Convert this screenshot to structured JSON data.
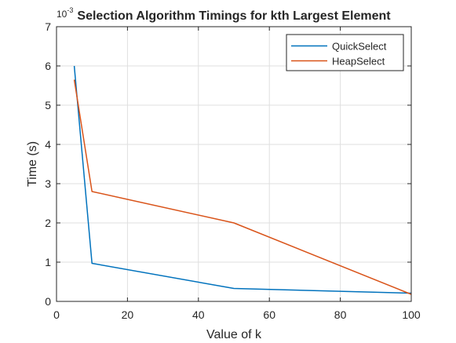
{
  "colors": {
    "series_1": "#0072BD",
    "series_2": "#D95319",
    "axis": "#262626",
    "grid": "#DFDFDF",
    "background": "#FFFFFF"
  },
  "chart_data": {
    "type": "line",
    "title": "Selection Algorithm Timings for kth Largest Element",
    "xlabel": "Value of k",
    "ylabel": "Time (s)",
    "y_exponent_label": "10^-3",
    "y_multiplier": 0.001,
    "xlim": [
      0,
      100
    ],
    "ylim": [
      0,
      7
    ],
    "xticks": [
      0,
      20,
      40,
      60,
      80,
      100
    ],
    "yticks": [
      0,
      1,
      2,
      3,
      4,
      5,
      6,
      7
    ],
    "grid": true,
    "legend_position": "top-right",
    "series": [
      {
        "name": "QuickSelect",
        "x": [
          5,
          10,
          50,
          100
        ],
        "y": [
          6.0,
          0.97,
          0.33,
          0.21
        ],
        "color": "#0072BD"
      },
      {
        "name": "HeapSelect",
        "x": [
          5,
          10,
          50,
          100
        ],
        "y": [
          5.65,
          2.8,
          2.0,
          0.18
        ],
        "color": "#D95319"
      }
    ]
  }
}
